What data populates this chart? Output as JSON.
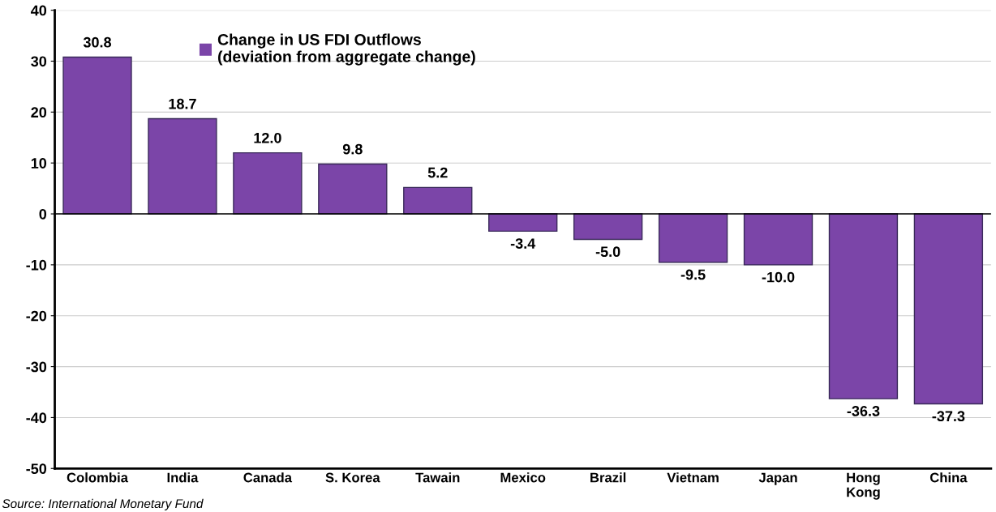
{
  "chart_data": {
    "type": "bar",
    "categories": [
      "Colombia",
      "India",
      "Canada",
      "S. Korea",
      "Tawain",
      "Mexico",
      "Brazil",
      "Vietnam",
      "Japan",
      "Hong\nKong",
      "China"
    ],
    "series": [
      {
        "name": "Change in US FDI Outflows\n(deviation from aggregate change)",
        "color": "#7b45a8",
        "values": [
          30.8,
          18.7,
          12.0,
          9.8,
          5.2,
          -3.4,
          -5.0,
          -9.5,
          -10.0,
          -36.3,
          -37.3
        ],
        "value_labels": [
          "30.8",
          "18.7",
          "12.0",
          "9.8",
          "5.2",
          "-3.4",
          "-5.0",
          "-9.5",
          "-10.0",
          "-36.3",
          "-37.3"
        ]
      }
    ],
    "ylim": [
      -50,
      40
    ],
    "yticks": [
      -50,
      -40,
      -30,
      -20,
      -10,
      0,
      10,
      20,
      30,
      40
    ],
    "grid": "y",
    "legend": "top left",
    "annotations": [
      "Source: International Monetary Fund"
    ]
  }
}
